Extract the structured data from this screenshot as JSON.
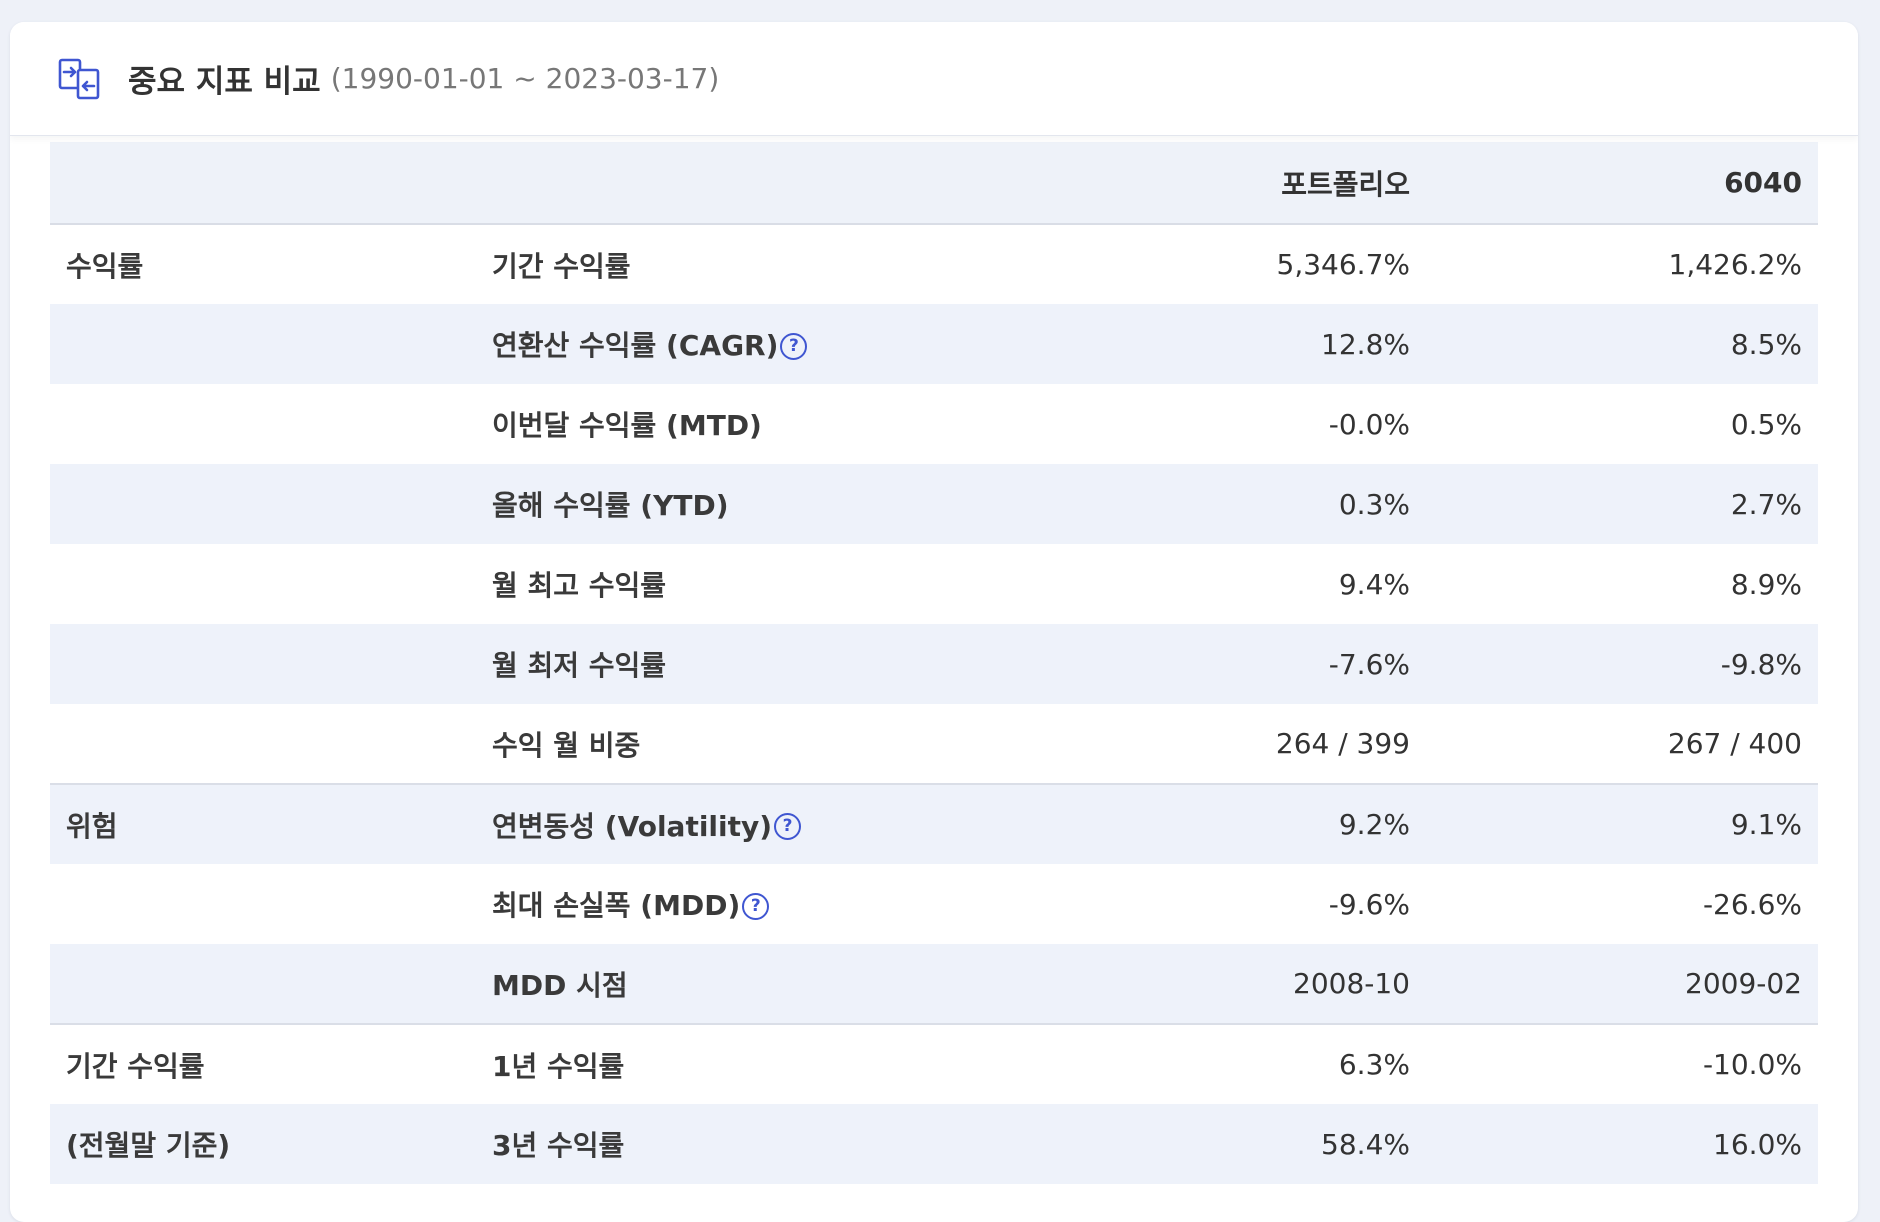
{
  "header": {
    "title": "중요 지표 비교",
    "range": "(1990-01-01 ~ 2023-03-17)",
    "icon": "compare-arrows-icon"
  },
  "table": {
    "columns": [
      "",
      "",
      "포트폴리오",
      "6040"
    ],
    "rows": [
      {
        "group": "수익률",
        "metric": "기간 수익률",
        "help": false,
        "portfolio": "5,346.7%",
        "benchmark": "1,426.2%"
      },
      {
        "group": "",
        "metric": "연환산 수익률 (CAGR)",
        "help": true,
        "portfolio": "12.8%",
        "benchmark": "8.5%"
      },
      {
        "group": "",
        "metric": "이번달 수익률 (MTD)",
        "help": false,
        "portfolio": "-0.0%",
        "benchmark": "0.5%"
      },
      {
        "group": "",
        "metric": "올해 수익률 (YTD)",
        "help": false,
        "portfolio": "0.3%",
        "benchmark": "2.7%"
      },
      {
        "group": "",
        "metric": "월 최고 수익률",
        "help": false,
        "portfolio": "9.4%",
        "benchmark": "8.9%"
      },
      {
        "group": "",
        "metric": "월 최저 수익률",
        "help": false,
        "portfolio": "-7.6%",
        "benchmark": "-9.8%"
      },
      {
        "group": "",
        "metric": "수익 월 비중",
        "help": false,
        "portfolio": "264 / 399",
        "benchmark": "267 / 400"
      },
      {
        "group": "위험",
        "metric": "연변동성 (Volatility)",
        "help": true,
        "portfolio": "9.2%",
        "benchmark": "9.1%"
      },
      {
        "group": "",
        "metric": "최대 손실폭 (MDD)",
        "help": true,
        "portfolio": "-9.6%",
        "benchmark": "-26.6%"
      },
      {
        "group": "",
        "metric": "MDD 시점",
        "help": false,
        "portfolio": "2008-10",
        "benchmark": "2009-02"
      },
      {
        "group": "기간 수익률",
        "metric": "1년 수익률",
        "help": false,
        "portfolio": "6.3%",
        "benchmark": "-10.0%"
      },
      {
        "group": "(전월말 기준)",
        "metric": "3년 수익률",
        "help": false,
        "portfolio": "58.4%",
        "benchmark": "16.0%"
      }
    ],
    "help_glyph": "?"
  },
  "colors": {
    "accent": "#3f56d1",
    "row_alt": "#eef2fa",
    "page_bg": "#eef1f8"
  }
}
